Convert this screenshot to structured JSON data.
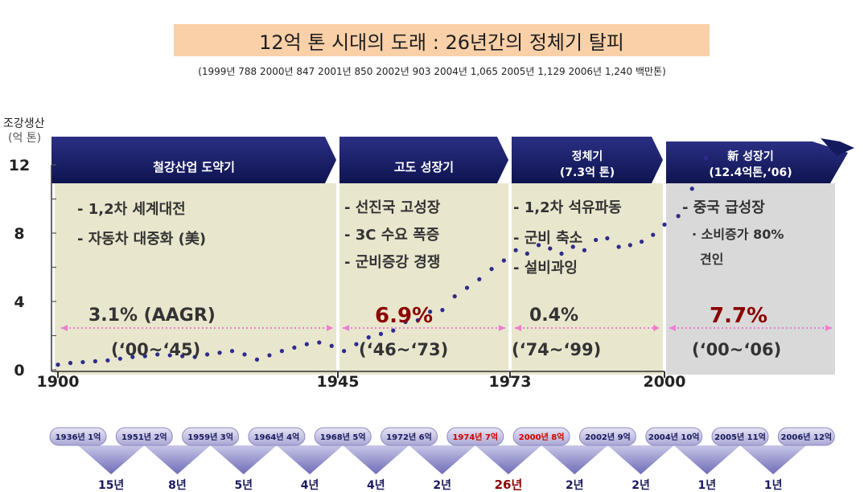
{
  "title": "12억 톤 시대의 도래 : 26년간의 정체기 탈피",
  "subtitle": "(1999년 788 2000년 847 2001년 850 2002년 903 2004년 1,065 2005년 1,129 2006년 1,240 백만톤)",
  "ylabel_line1": "조강생산",
  "ylabel_line2": "(억 톤)",
  "colors": {
    "header": "#141a5e",
    "panel_tan": "#e8e6cd",
    "panel_gray": "#d9d9d9",
    "dots": "#2e2b8c",
    "arrow": "#f07ccf",
    "highlight": "#8b0000",
    "bubble": "#c4c2e2",
    "bubble_text": "#1a1a5e"
  },
  "chart_data": {
    "type": "scatter",
    "x": [
      1900,
      1902,
      1904,
      1906,
      1908,
      1910,
      1912,
      1914,
      1916,
      1918,
      1920,
      1922,
      1924,
      1926,
      1928,
      1930,
      1932,
      1934,
      1936,
      1938,
      1940,
      1942,
      1944,
      1946,
      1948,
      1950,
      1952,
      1954,
      1956,
      1958,
      1960,
      1962,
      1964,
      1966,
      1968,
      1970,
      1972,
      1974,
      1976,
      1978,
      1980,
      1982,
      1984,
      1986,
      1988,
      1990,
      1992,
      1994,
      1996,
      1998,
      2000,
      2002,
      2004,
      2006
    ],
    "y": [
      0.3,
      0.4,
      0.45,
      0.5,
      0.55,
      0.65,
      0.75,
      0.8,
      0.9,
      0.85,
      0.8,
      0.75,
      0.9,
      1.0,
      1.1,
      0.9,
      0.6,
      0.85,
      1.1,
      1.3,
      1.5,
      1.6,
      1.4,
      1.1,
      1.5,
      1.9,
      2.1,
      2.3,
      2.8,
      2.9,
      3.4,
      3.5,
      4.3,
      4.8,
      5.3,
      5.9,
      6.4,
      7.0,
      6.8,
      7.3,
      7.1,
      6.8,
      7.2,
      7.0,
      7.6,
      7.7,
      7.2,
      7.3,
      7.5,
      7.9,
      8.5,
      9.0,
      10.6,
      12.4
    ],
    "ylim": [
      0,
      12
    ],
    "xlim": [
      1900,
      2025
    ],
    "yticks": [
      "0",
      "4",
      "8",
      "12"
    ],
    "xticks": [
      "1900",
      "1945",
      "1973",
      "2000"
    ],
    "eras": [
      {
        "name": "철강산업 도약기",
        "start": 1900,
        "end": 1945,
        "rate": "3.1% (AAGR)",
        "period": "(‘00~‘45)",
        "bullets": [
          "- 1,2차 세계대전",
          "- 자동차 대중화 (美)"
        ]
      },
      {
        "name": "고도 성장기",
        "start": 1945,
        "end": 1973,
        "rate": "6.9%",
        "period": "(‘46~‘73)",
        "bullets": [
          "- 선진국 고성장",
          "- 3C 수요 폭증",
          "- 군비증강 경쟁"
        ]
      },
      {
        "name_line1": "정체기",
        "name_line2": "(7.3억 톤)",
        "start": 1973,
        "end": 2000,
        "rate": "0.4%",
        "period": "(‘74~‘99)",
        "bullets": [
          "- 1,2차 석유파동",
          "- 군비 축소",
          "- 설비과잉"
        ]
      },
      {
        "name_line1": "新 성장기",
        "name_line2": "(12.4억톤,‘06)",
        "start": 2000,
        "end": 2025,
        "rate": "7.7%",
        "period": "(‘00~‘06)",
        "bullets": [
          "- 중국 급성장",
          "· 소비증가 80%",
          "견인"
        ]
      }
    ]
  },
  "milestones": [
    {
      "label": "1936년 1억",
      "highlight": false
    },
    {
      "label": "1951년 2억",
      "highlight": false
    },
    {
      "label": "1959년 3억",
      "highlight": false
    },
    {
      "label": "1964년 4억",
      "highlight": false
    },
    {
      "label": "1968년 5억",
      "highlight": false
    },
    {
      "label": "1972년 6억",
      "highlight": false
    },
    {
      "label": "1974년 7억",
      "highlight": true
    },
    {
      "label": "2000년 8억",
      "highlight": true
    },
    {
      "label": "2002년 9억",
      "highlight": false
    },
    {
      "label": "2004년 10억",
      "highlight": false
    },
    {
      "label": "2005년 11억",
      "highlight": false
    },
    {
      "label": "2006년 12억",
      "highlight": false
    }
  ],
  "gaps": [
    {
      "label": "15년",
      "highlight": false
    },
    {
      "label": "8년",
      "highlight": false
    },
    {
      "label": "5년",
      "highlight": false
    },
    {
      "label": "4년",
      "highlight": false
    },
    {
      "label": "4년",
      "highlight": false
    },
    {
      "label": "2년",
      "highlight": false
    },
    {
      "label": "26년",
      "highlight": true
    },
    {
      "label": "2년",
      "highlight": false
    },
    {
      "label": "2년",
      "highlight": false
    },
    {
      "label": "1년",
      "highlight": false
    },
    {
      "label": "1년",
      "highlight": false
    }
  ]
}
